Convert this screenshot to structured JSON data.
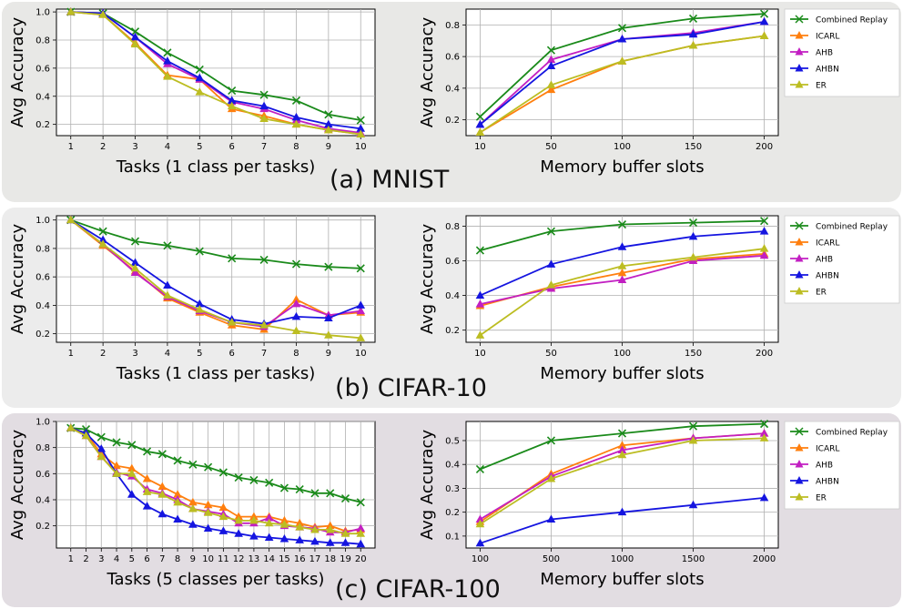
{
  "colors": {
    "Combined Replay": "#1a8a1a",
    "ICARL": "#ff7f0e",
    "AHB": "#c21fc2",
    "AHBN": "#1515e0",
    "ER": "#bcbd22",
    "panel_bg_mnist": "#e8e8e6",
    "panel_bg_cifar10": "#ececec",
    "panel_bg_cifar100": "#e2dde2"
  },
  "panels": [
    {
      "caption": "(a) MNIST"
    },
    {
      "caption": "(b) CIFAR-10"
    },
    {
      "caption": "(c) CIFAR-100"
    }
  ],
  "chart_data": [
    {
      "id": "mnist-tasks",
      "type": "line",
      "xlabel": "Tasks (1 class per tasks)",
      "ylabel": "Avg Accuracy",
      "x": [
        1,
        2,
        3,
        4,
        5,
        6,
        7,
        8,
        9,
        10
      ],
      "xticks": [
        "1",
        "2",
        "3",
        "4",
        "5",
        "6",
        "7",
        "8",
        "9",
        "10"
      ],
      "yticks": [
        "0.2",
        "0.4",
        "0.6",
        "0.8",
        "1.0"
      ],
      "ylim": [
        0.12,
        1.02
      ],
      "legend": false,
      "series": [
        {
          "name": "Combined Replay",
          "values": [
            1.0,
            0.99,
            0.86,
            0.71,
            0.59,
            0.44,
            0.41,
            0.37,
            0.27,
            0.23
          ]
        },
        {
          "name": "ICARL",
          "values": [
            1.0,
            0.98,
            0.78,
            0.55,
            0.52,
            0.31,
            0.26,
            0.2,
            0.16,
            0.13
          ]
        },
        {
          "name": "AHB",
          "values": [
            1.0,
            0.99,
            0.82,
            0.63,
            0.52,
            0.36,
            0.31,
            0.23,
            0.17,
            0.14
          ]
        },
        {
          "name": "AHBN",
          "values": [
            1.0,
            0.99,
            0.82,
            0.65,
            0.53,
            0.37,
            0.33,
            0.25,
            0.2,
            0.17
          ]
        },
        {
          "name": "ER",
          "values": [
            1.0,
            0.98,
            0.77,
            0.54,
            0.43,
            0.33,
            0.24,
            0.2,
            0.16,
            0.13
          ]
        }
      ]
    },
    {
      "id": "mnist-memory",
      "type": "line",
      "xlabel": "Memory buffer slots",
      "ylabel": "Avg Accuracy",
      "x": [
        "10",
        "50",
        "100",
        "150",
        "200"
      ],
      "xticks": [
        "10",
        "50",
        "100",
        "150",
        "200"
      ],
      "yticks": [
        "0.2",
        "0.4",
        "0.6",
        "0.8"
      ],
      "ylim": [
        0.1,
        0.9
      ],
      "legend": true,
      "legend_placement": "outside-right",
      "series": [
        {
          "name": "Combined Replay",
          "values": [
            0.22,
            0.64,
            0.78,
            0.84,
            0.87
          ]
        },
        {
          "name": "ICARL",
          "values": [
            0.12,
            0.39,
            0.57,
            0.67,
            0.73
          ]
        },
        {
          "name": "AHB",
          "values": [
            0.17,
            0.58,
            0.71,
            0.75,
            0.82
          ]
        },
        {
          "name": "AHBN",
          "values": [
            0.17,
            0.54,
            0.71,
            0.74,
            0.82
          ]
        },
        {
          "name": "ER",
          "values": [
            0.12,
            0.42,
            0.57,
            0.67,
            0.73
          ]
        }
      ]
    },
    {
      "id": "cifar10-tasks",
      "type": "line",
      "xlabel": "Tasks (1 class per tasks)",
      "ylabel": "Avg Accuracy",
      "x": [
        1,
        2,
        3,
        4,
        5,
        6,
        7,
        8,
        9,
        10
      ],
      "xticks": [
        "1",
        "2",
        "3",
        "4",
        "5",
        "6",
        "7",
        "8",
        "9",
        "10"
      ],
      "yticks": [
        "0.2",
        "0.4",
        "0.6",
        "0.8",
        "1.0"
      ],
      "ylim": [
        0.14,
        1.03
      ],
      "legend": false,
      "series": [
        {
          "name": "Combined Replay",
          "values": [
            1.0,
            0.92,
            0.85,
            0.82,
            0.78,
            0.73,
            0.72,
            0.69,
            0.67,
            0.66
          ]
        },
        {
          "name": "ICARL",
          "values": [
            1.0,
            0.82,
            0.64,
            0.45,
            0.35,
            0.26,
            0.23,
            0.44,
            0.33,
            0.35
          ]
        },
        {
          "name": "AHB",
          "values": [
            1.0,
            0.83,
            0.63,
            0.46,
            0.36,
            0.28,
            0.25,
            0.41,
            0.33,
            0.36
          ]
        },
        {
          "name": "AHBN",
          "values": [
            1.0,
            0.86,
            0.7,
            0.54,
            0.41,
            0.3,
            0.27,
            0.32,
            0.31,
            0.4
          ]
        },
        {
          "name": "ER",
          "values": [
            1.0,
            0.83,
            0.66,
            0.47,
            0.37,
            0.28,
            0.26,
            0.22,
            0.19,
            0.17
          ]
        }
      ]
    },
    {
      "id": "cifar10-memory",
      "type": "line",
      "xlabel": "Memory buffer slots",
      "ylabel": "Avg Accuracy",
      "x": [
        "10",
        "50",
        "100",
        "150",
        "200"
      ],
      "xticks": [
        "10",
        "50",
        "100",
        "150",
        "200"
      ],
      "yticks": [
        "0.2",
        "0.4",
        "0.6",
        "0.8"
      ],
      "ylim": [
        0.13,
        0.86
      ],
      "legend": true,
      "legend_placement": "outside-right",
      "series": [
        {
          "name": "Combined Replay",
          "values": [
            0.66,
            0.77,
            0.81,
            0.82,
            0.83
          ]
        },
        {
          "name": "ICARL",
          "values": [
            0.34,
            0.45,
            0.53,
            0.61,
            0.64
          ]
        },
        {
          "name": "AHB",
          "values": [
            0.35,
            0.44,
            0.49,
            0.6,
            0.63
          ]
        },
        {
          "name": "AHBN",
          "values": [
            0.4,
            0.58,
            0.68,
            0.74,
            0.77
          ]
        },
        {
          "name": "ER",
          "values": [
            0.17,
            0.46,
            0.57,
            0.62,
            0.67
          ]
        }
      ]
    },
    {
      "id": "cifar100-tasks",
      "type": "line",
      "xlabel": "Tasks (5 classes per tasks)",
      "ylabel": "Avg Accuracy",
      "x": [
        1,
        2,
        3,
        4,
        5,
        6,
        7,
        8,
        9,
        10,
        11,
        12,
        13,
        14,
        15,
        16,
        17,
        18,
        19,
        20
      ],
      "xticks": [
        "1",
        "2",
        "3",
        "4",
        "5",
        "6",
        "7",
        "8",
        "9",
        "10",
        "11",
        "12",
        "13",
        "14",
        "15",
        "16",
        "17",
        "18",
        "19",
        "20"
      ],
      "yticks": [
        "0.2",
        "0.4",
        "0.6",
        "0.8",
        "1.0"
      ],
      "ylim": [
        0.03,
        1.0
      ],
      "legend": false,
      "series": [
        {
          "name": "Combined Replay",
          "values": [
            0.95,
            0.94,
            0.88,
            0.84,
            0.82,
            0.77,
            0.75,
            0.7,
            0.67,
            0.65,
            0.61,
            0.57,
            0.55,
            0.53,
            0.49,
            0.48,
            0.45,
            0.45,
            0.41,
            0.38
          ]
        },
        {
          "name": "ICARL",
          "values": [
            0.95,
            0.91,
            0.75,
            0.66,
            0.64,
            0.56,
            0.5,
            0.44,
            0.38,
            0.36,
            0.34,
            0.27,
            0.27,
            0.27,
            0.24,
            0.22,
            0.19,
            0.2,
            0.16,
            0.17
          ]
        },
        {
          "name": "AHB",
          "values": [
            0.95,
            0.89,
            0.73,
            0.61,
            0.58,
            0.48,
            0.45,
            0.4,
            0.33,
            0.31,
            0.29,
            0.22,
            0.22,
            0.26,
            0.2,
            0.19,
            0.18,
            0.15,
            0.15,
            0.18
          ]
        },
        {
          "name": "AHBN",
          "values": [
            0.95,
            0.91,
            0.79,
            0.6,
            0.44,
            0.35,
            0.29,
            0.25,
            0.21,
            0.18,
            0.16,
            0.14,
            0.12,
            0.11,
            0.1,
            0.09,
            0.08,
            0.07,
            0.07,
            0.06
          ]
        },
        {
          "name": "ER",
          "values": [
            0.95,
            0.89,
            0.73,
            0.6,
            0.6,
            0.46,
            0.44,
            0.38,
            0.33,
            0.3,
            0.27,
            0.24,
            0.24,
            0.22,
            0.21,
            0.19,
            0.17,
            0.17,
            0.14,
            0.14
          ]
        }
      ]
    },
    {
      "id": "cifar100-memory",
      "type": "line",
      "xlabel": "Memory buffer slots",
      "ylabel": "Avg Accuracy",
      "x": [
        "100",
        "500",
        "1000",
        "1500",
        "2000"
      ],
      "xticks": [
        "100",
        "500",
        "1000",
        "1500",
        "2000"
      ],
      "yticks": [
        "0.1",
        "0.2",
        "0.3",
        "0.4",
        "0.5"
      ],
      "ylim": [
        0.05,
        0.58
      ],
      "legend": true,
      "legend_placement": "outside-right",
      "series": [
        {
          "name": "Combined Replay",
          "values": [
            0.38,
            0.5,
            0.53,
            0.56,
            0.57
          ]
        },
        {
          "name": "ICARL",
          "values": [
            0.16,
            0.36,
            0.48,
            0.51,
            0.53
          ]
        },
        {
          "name": "AHB",
          "values": [
            0.17,
            0.35,
            0.46,
            0.51,
            0.53
          ]
        },
        {
          "name": "AHBN",
          "values": [
            0.07,
            0.17,
            0.2,
            0.23,
            0.26
          ]
        },
        {
          "name": "ER",
          "values": [
            0.15,
            0.34,
            0.44,
            0.5,
            0.51
          ]
        }
      ]
    }
  ]
}
